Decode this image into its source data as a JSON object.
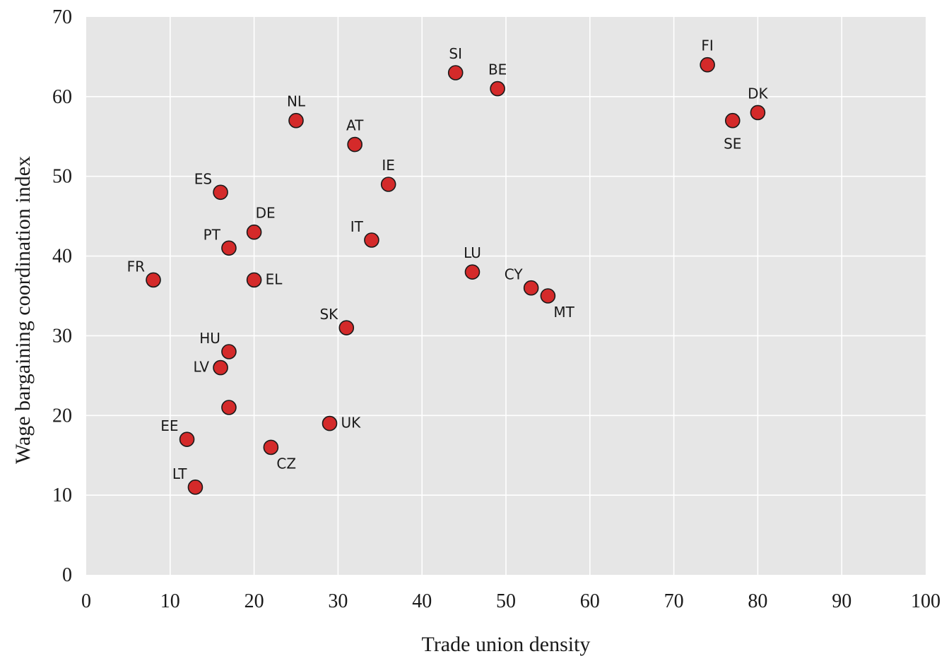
{
  "chart_data": {
    "type": "scatter",
    "title": "",
    "xlabel": "Trade union density",
    "ylabel": "Wage bargaining coordination index",
    "xlim": [
      0,
      100
    ],
    "ylim": [
      0,
      70
    ],
    "x_ticks": [
      0,
      10,
      20,
      30,
      40,
      50,
      60,
      70,
      80,
      90,
      100
    ],
    "y_ticks": [
      0,
      10,
      20,
      30,
      40,
      50,
      60,
      70
    ],
    "grid": true,
    "legend": "none",
    "colors": {
      "point_fill": "#d42a2a",
      "point_stroke": "#1a1a1a",
      "plot_background": "#e6e6e6",
      "grid": "#ffffff"
    },
    "points": [
      {
        "label": "FR",
        "x": 8,
        "y": 37,
        "label_pos": "upper-left"
      },
      {
        "label": "ES",
        "x": 16,
        "y": 48,
        "label_pos": "upper-left"
      },
      {
        "label": "PT",
        "x": 17,
        "y": 41,
        "label_pos": "upper-left"
      },
      {
        "label": "DE",
        "x": 20,
        "y": 43,
        "label_pos": "upper-right"
      },
      {
        "label": "EL",
        "x": 20,
        "y": 37,
        "label_pos": "right"
      },
      {
        "label": "HU",
        "x": 17,
        "y": 28,
        "label_pos": "upper-left"
      },
      {
        "label": "LV",
        "x": 16,
        "y": 26,
        "label_pos": "left"
      },
      {
        "label": "",
        "x": 17,
        "y": 21,
        "label_pos": "none"
      },
      {
        "label": "EE",
        "x": 12,
        "y": 17,
        "label_pos": "upper-left"
      },
      {
        "label": "LT",
        "x": 13,
        "y": 11,
        "label_pos": "upper-left"
      },
      {
        "label": "CZ",
        "x": 22,
        "y": 16,
        "label_pos": "lower-right"
      },
      {
        "label": "NL",
        "x": 25,
        "y": 57,
        "label_pos": "above"
      },
      {
        "label": "AT",
        "x": 32,
        "y": 54,
        "label_pos": "above"
      },
      {
        "label": "IE",
        "x": 36,
        "y": 49,
        "label_pos": "above"
      },
      {
        "label": "IT",
        "x": 34,
        "y": 42,
        "label_pos": "upper-left"
      },
      {
        "label": "SK",
        "x": 31,
        "y": 31,
        "label_pos": "upper-left"
      },
      {
        "label": "UK",
        "x": 29,
        "y": 19,
        "label_pos": "right"
      },
      {
        "label": "SI",
        "x": 44,
        "y": 63,
        "label_pos": "above"
      },
      {
        "label": "BE",
        "x": 49,
        "y": 61,
        "label_pos": "above"
      },
      {
        "label": "LU",
        "x": 46,
        "y": 38,
        "label_pos": "above"
      },
      {
        "label": "CY",
        "x": 53,
        "y": 36,
        "label_pos": "upper-left"
      },
      {
        "label": "MT",
        "x": 55,
        "y": 35,
        "label_pos": "lower-right"
      },
      {
        "label": "FI",
        "x": 74,
        "y": 64,
        "label_pos": "above"
      },
      {
        "label": "DK",
        "x": 80,
        "y": 58,
        "label_pos": "above"
      },
      {
        "label": "SE",
        "x": 77,
        "y": 57,
        "label_pos": "below"
      }
    ]
  }
}
